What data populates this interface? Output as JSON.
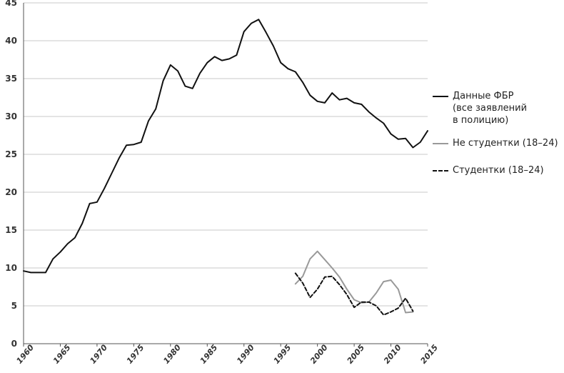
{
  "chart_data": {
    "type": "line",
    "title": "",
    "xlabel": "",
    "ylabel": "",
    "xlim": [
      1960,
      2015
    ],
    "ylim": [
      0,
      45
    ],
    "yticks": [
      0,
      5,
      10,
      15,
      20,
      25,
      30,
      35,
      40,
      45
    ],
    "xticks": [
      1960,
      1965,
      1970,
      1975,
      1980,
      1985,
      1990,
      1995,
      2000,
      2005,
      2010,
      2015
    ],
    "grid": true,
    "legend_position": "right",
    "series": [
      {
        "name": "Данные ФБР\n(все заявлений\nв полицию)",
        "style": "solid",
        "color": "#111111",
        "x": [
          1960,
          1961,
          1962,
          1963,
          1964,
          1965,
          1966,
          1967,
          1968,
          1969,
          1970,
          1971,
          1972,
          1973,
          1974,
          1975,
          1976,
          1977,
          1978,
          1979,
          1980,
          1981,
          1982,
          1983,
          1984,
          1985,
          1986,
          1987,
          1988,
          1989,
          1990,
          1991,
          1992,
          1993,
          1994,
          1995,
          1996,
          1997,
          1998,
          1999,
          2000,
          2001,
          2002,
          2003,
          2004,
          2005,
          2006,
          2007,
          2008,
          2009,
          2010,
          2011,
          2012,
          2013,
          2014,
          2015
        ],
        "values": [
          9.6,
          9.4,
          9.4,
          9.4,
          11.2,
          12.1,
          13.2,
          14.0,
          15.9,
          18.5,
          18.7,
          20.5,
          22.5,
          24.5,
          26.2,
          26.3,
          26.6,
          29.4,
          31.0,
          34.7,
          36.8,
          36.0,
          34.0,
          33.7,
          35.7,
          37.1,
          37.9,
          37.4,
          37.6,
          38.1,
          41.2,
          42.3,
          42.8,
          41.1,
          39.3,
          37.1,
          36.3,
          35.9,
          34.5,
          32.8,
          32.0,
          31.8,
          33.1,
          32.2,
          32.4,
          31.8,
          31.6,
          30.6,
          29.8,
          29.1,
          27.7,
          27.0,
          27.1,
          25.9,
          26.6,
          28.1
        ]
      },
      {
        "name": "Не студентки (18–24)",
        "style": "solid",
        "color": "#999999",
        "x": [
          1997,
          1998,
          1999,
          2000,
          2001,
          2002,
          2003,
          2004,
          2005,
          2006,
          2007,
          2008,
          2009,
          2010,
          2011,
          2012,
          2013
        ],
        "values": [
          7.9,
          8.9,
          11.2,
          12.2,
          11.1,
          10.0,
          8.8,
          7.2,
          5.8,
          5.4,
          5.5,
          6.7,
          8.2,
          8.4,
          7.2,
          4.1,
          4.2
        ]
      },
      {
        "name": "Студентки (18–24)",
        "style": "dashed",
        "color": "#111111",
        "x": [
          1997,
          1998,
          1999,
          2000,
          2001,
          2002,
          2003,
          2004,
          2005,
          2006,
          2007,
          2008,
          2009,
          2010,
          2011,
          2012,
          2013
        ],
        "values": [
          9.3,
          8.0,
          6.1,
          7.2,
          8.8,
          8.9,
          7.8,
          6.5,
          4.8,
          5.5,
          5.5,
          5.0,
          3.8,
          4.2,
          4.7,
          6.0,
          4.3
        ]
      }
    ]
  }
}
